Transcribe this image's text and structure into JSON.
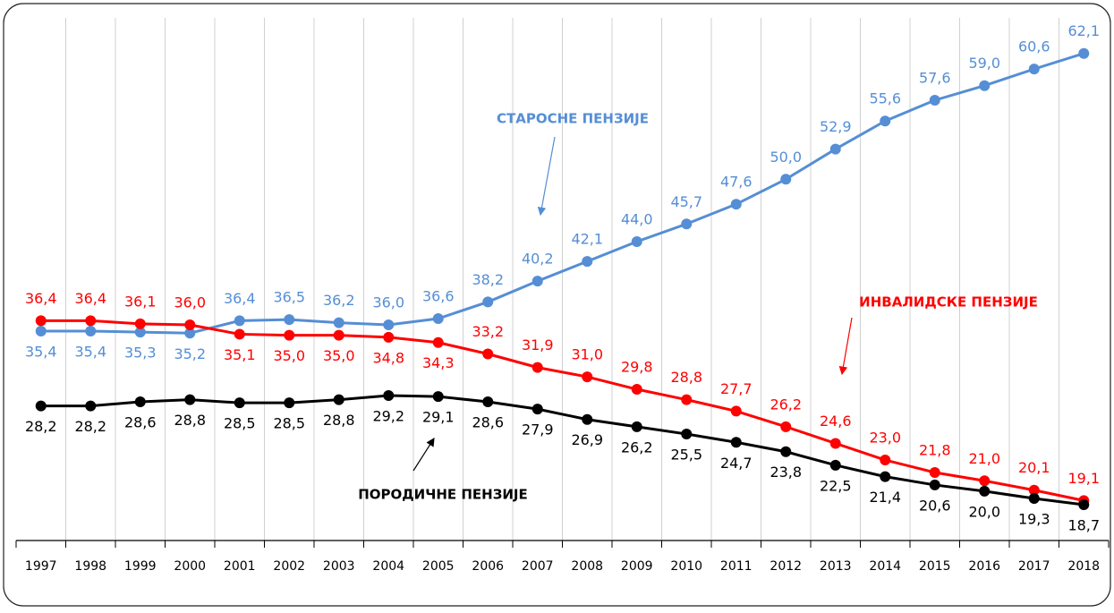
{
  "chart_data": {
    "type": "line",
    "categories": [
      "1997",
      "1998",
      "1999",
      "2000",
      "2001",
      "2002",
      "2003",
      "2004",
      "2005",
      "2006",
      "2007",
      "2008",
      "2009",
      "2010",
      "2011",
      "2012",
      "2013",
      "2014",
      "2015",
      "2016",
      "2017",
      "2018"
    ],
    "series": [
      {
        "name": "СТАРОСНЕ ПЕНЗИЈЕ",
        "color": "#558ed5",
        "values": [
          35.4,
          35.4,
          35.3,
          35.2,
          36.4,
          36.5,
          36.2,
          36.0,
          36.6,
          38.2,
          40.2,
          42.1,
          44.0,
          45.7,
          47.6,
          50.0,
          52.9,
          55.6,
          57.6,
          59.0,
          60.6,
          62.1
        ],
        "value_labels": [
          "35,4",
          "35,4",
          "35,3",
          "35,2",
          "36,4",
          "36,5",
          "36,2",
          "36,0",
          "36,6",
          "38,2",
          "40,2",
          "42,1",
          "44,0",
          "45,7",
          "47,6",
          "50,0",
          "52,9",
          "55,6",
          "57,6",
          "59,0",
          "60,6",
          "62,1"
        ]
      },
      {
        "name": "ИНВАЛИДСКЕ ПЕНЗИЈЕ",
        "color": "#ff0000",
        "values": [
          36.4,
          36.4,
          36.1,
          36.0,
          35.1,
          35.0,
          35.0,
          34.8,
          34.3,
          33.2,
          31.9,
          31.0,
          29.8,
          28.8,
          27.7,
          26.2,
          24.6,
          23.0,
          21.8,
          21.0,
          20.1,
          19.1
        ],
        "value_labels": [
          "36,4",
          "36,4",
          "36,1",
          "36,0",
          "35,1",
          "35,0",
          "35,0",
          "34,8",
          "34,3",
          "33,2",
          "31,9",
          "31,0",
          "29,8",
          "28,8",
          "27,7",
          "26,2",
          "24,6",
          "23,0",
          "21,8",
          "21,0",
          "20,1",
          "19,1"
        ]
      },
      {
        "name": "ПОРОДИЧНЕ ПЕНЗИЈЕ",
        "color": "#000000",
        "values": [
          28.2,
          28.2,
          28.6,
          28.8,
          28.5,
          28.5,
          28.8,
          29.2,
          29.1,
          28.6,
          27.9,
          26.9,
          26.2,
          25.5,
          24.7,
          23.8,
          22.5,
          21.4,
          20.6,
          20.0,
          19.3,
          18.7
        ],
        "value_labels": [
          "28,2",
          "28,2",
          "28,6",
          "28,8",
          "28,5",
          "28,5",
          "28,8",
          "29,2",
          "29,1",
          "28,6",
          "27,9",
          "26,9",
          "26,2",
          "25,5",
          "24,7",
          "23,8",
          "22,5",
          "21,4",
          "20,6",
          "20,0",
          "19,3",
          "18,7"
        ]
      }
    ],
    "ylim": [
      15,
      65
    ],
    "grid": true
  }
}
